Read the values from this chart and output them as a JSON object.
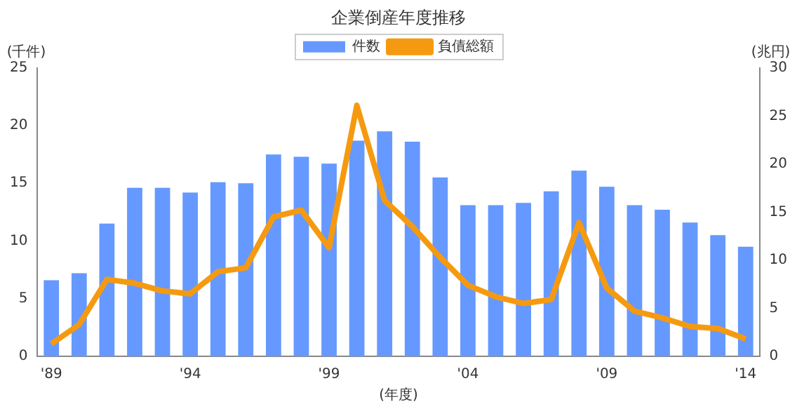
{
  "chart_data": {
    "type": "bar",
    "title": "企業倒産年度推移",
    "xlabel": "(年度)",
    "ylabel": "(千件)",
    "y2label": "(兆円)",
    "categories": [
      "'89",
      null,
      null,
      null,
      null,
      "'94",
      null,
      null,
      null,
      null,
      "'99",
      null,
      null,
      null,
      null,
      "'04",
      null,
      null,
      null,
      null,
      "'09",
      null,
      null,
      null,
      null,
      "'14"
    ],
    "series": [
      {
        "name": "件数",
        "color": "#6699ff",
        "values": [
          6.6,
          7.2,
          11.5,
          14.6,
          14.6,
          14.2,
          15.1,
          15.0,
          17.5,
          17.3,
          16.7,
          18.7,
          19.5,
          18.6,
          15.5,
          13.1,
          13.1,
          13.3,
          14.3,
          16.1,
          14.7,
          13.1,
          12.7,
          11.6,
          10.5,
          9.5
        ]
      },
      {
        "name": "負債総額",
        "type": "line",
        "axis": "y2",
        "color": "#f59a10",
        "values": [
          1.3,
          3.3,
          8.0,
          7.6,
          6.8,
          6.5,
          8.8,
          9.2,
          14.5,
          15.2,
          11.3,
          26.1,
          16.2,
          13.5,
          10.3,
          7.4,
          6.2,
          5.5,
          5.9,
          13.9,
          7.1,
          4.7,
          4.0,
          3.1,
          2.9,
          1.8
        ]
      }
    ],
    "ylim": [
      0,
      25
    ],
    "yticks": [
      0,
      5,
      10,
      15,
      20,
      25
    ],
    "y2lim": [
      0,
      30
    ],
    "y2ticks": [
      0,
      5,
      10,
      15,
      20,
      25,
      30
    ],
    "legend": "top"
  }
}
